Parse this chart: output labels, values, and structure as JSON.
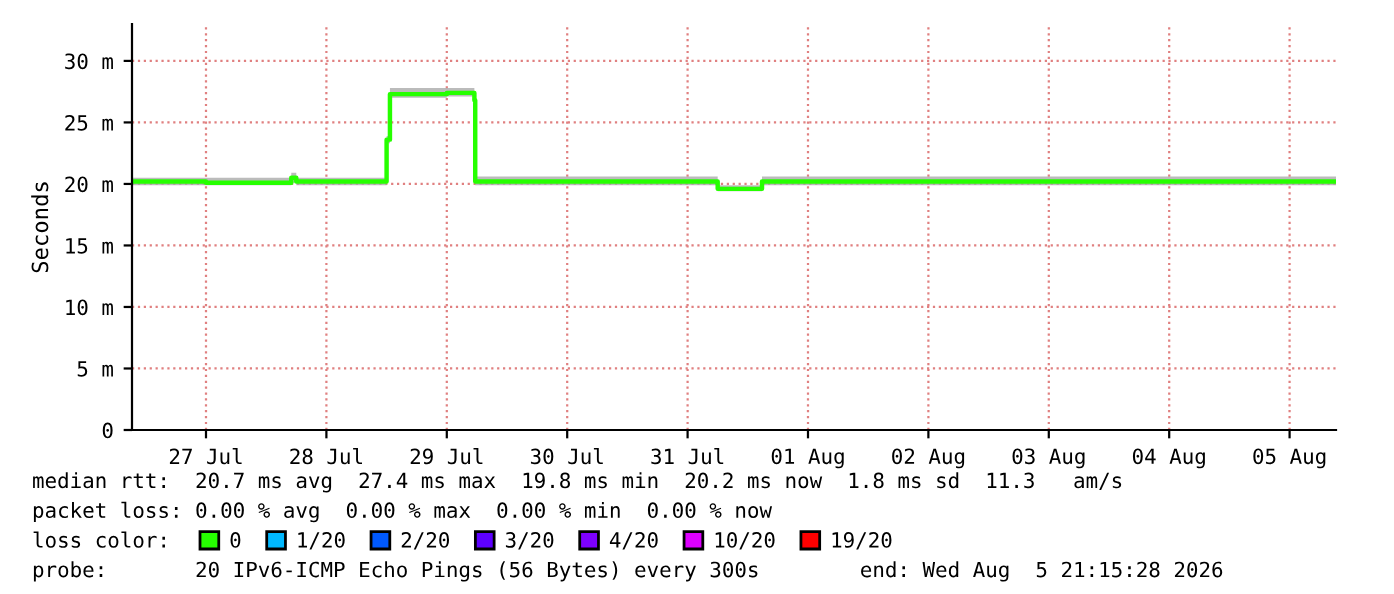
{
  "chart_data": {
    "type": "step",
    "ylabel": "Seconds",
    "xlim": [
      "2026-07-26T21:15",
      "2026-08-05T21:15"
    ],
    "xticks": [
      {
        "value": "2026-07-27T12:00",
        "label": "27 Jul"
      },
      {
        "value": "2026-07-28T12:00",
        "label": "28 Jul"
      },
      {
        "value": "2026-07-29T12:00",
        "label": "29 Jul"
      },
      {
        "value": "2026-07-30T12:00",
        "label": "30 Jul"
      },
      {
        "value": "2026-07-31T12:00",
        "label": "31 Jul"
      },
      {
        "value": "2026-08-01T12:00",
        "label": "01 Aug"
      },
      {
        "value": "2026-08-02T12:00",
        "label": "02 Aug"
      },
      {
        "value": "2026-08-03T12:00",
        "label": "03 Aug"
      },
      {
        "value": "2026-08-04T12:00",
        "label": "04 Aug"
      },
      {
        "value": "2026-08-05T12:00",
        "label": "05 Aug"
      }
    ],
    "ylim": [
      0,
      33
    ],
    "yticks": [
      0,
      {
        "value": 5,
        "label": "5 m"
      },
      {
        "value": 10,
        "label": "10 m"
      },
      {
        "value": 15,
        "label": "15 m"
      },
      {
        "value": 20,
        "label": "20 m"
      },
      {
        "value": 25,
        "label": "25 m"
      },
      {
        "value": 30,
        "label": "30 m"
      }
    ],
    "grid": true,
    "legend": "bottom",
    "legend_title": "loss color:",
    "line_style": "solid",
    "series": [
      {
        "name": "0",
        "color": "#26ff00",
        "x": [
          "2026-07-26T21:15",
          "2026-07-27T12:00",
          "2026-07-28T05:00",
          "2026-07-28T06:00",
          "2026-07-29T00:00",
          "2026-07-29T00:40",
          "2026-07-29T12:00",
          "2026-07-29T17:30",
          "2026-07-29T17:40",
          "2026-07-31T18:00",
          "2026-08-01T02:50",
          "2026-08-05T21:15"
        ],
        "values": [
          20.2,
          20.1,
          20.5,
          20.2,
          23.6,
          27.3,
          27.4,
          26.8,
          20.2,
          19.6,
          20.2,
          20.2
        ],
        "lower": [
          19.9,
          19.9,
          20.1,
          19.9,
          23.3,
          27.0,
          27.1,
          26.5,
          19.9,
          19.4,
          19.9,
          19.9
        ],
        "upper": [
          20.5,
          20.5,
          20.9,
          20.5,
          23.9,
          27.8,
          27.8,
          27.2,
          20.6,
          19.9,
          20.6,
          20.5
        ]
      },
      {
        "name": "1/20",
        "color": "#00b8ff"
      },
      {
        "name": "2/20",
        "color": "#0059ff"
      },
      {
        "name": "3/20",
        "color": "#5e00ff"
      },
      {
        "name": "4/20",
        "color": "#7e00ff"
      },
      {
        "name": "10/20",
        "color": "#dd00ff"
      },
      {
        "name": "19/20",
        "color": "#ff0000"
      }
    ],
    "annotations": [
      "median rtt:  20.7 ms avg  27.4 ms max  19.8 ms min  20.2 ms now  1.8 ms sd  11.3   am/s",
      "packet loss: 0.00 % avg  0.00 % max  0.00 % min  0.00 % now",
      "probe:       20 IPv6-ICMP Echo Pings (56 Bytes) every 300s        end: Wed Aug  5 21:15:28 2026"
    ]
  }
}
